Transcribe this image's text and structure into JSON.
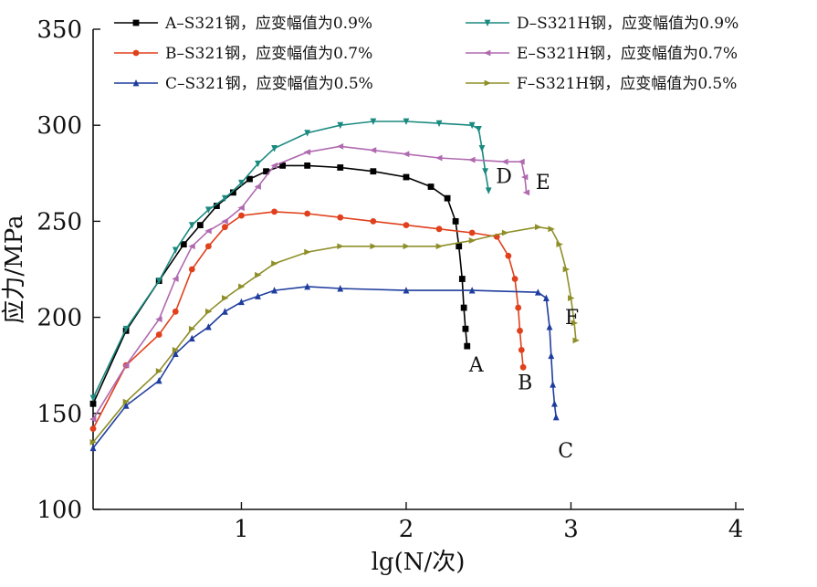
{
  "chart_data": {
    "type": "line",
    "xlabel": "lg(N/次)",
    "ylabel": "应力/MPa",
    "xlim": [
      0.1,
      4.05
    ],
    "ylim": [
      100,
      350
    ],
    "xticks": [
      "1",
      "2",
      "3",
      "4"
    ],
    "yticks": [
      "100",
      "150",
      "200",
      "250",
      "300",
      "350"
    ],
    "grid": false,
    "legend_position": "top",
    "series": [
      {
        "name": "A–S321钢，应变幅值为0.9%",
        "end_label": "A",
        "color": "#000000",
        "marker": "square",
        "x": [
          0.1,
          0.3,
          0.5,
          0.65,
          0.75,
          0.85,
          0.95,
          1.05,
          1.15,
          1.25,
          1.4,
          1.6,
          1.8,
          2.0,
          2.15,
          2.25,
          2.3,
          2.32,
          2.34,
          2.35,
          2.36,
          2.37
        ],
        "y": [
          155,
          193,
          219,
          238,
          248,
          258,
          265,
          272,
          276,
          279,
          279,
          278,
          276,
          273,
          268,
          262,
          250,
          237,
          220,
          205,
          194,
          185
        ]
      },
      {
        "name": "B–S321钢，应变幅值为0.7%",
        "end_label": "B",
        "color": "#e0401c",
        "marker": "circle",
        "x": [
          0.1,
          0.3,
          0.5,
          0.6,
          0.7,
          0.8,
          0.9,
          1.0,
          1.2,
          1.4,
          1.6,
          1.8,
          2.0,
          2.2,
          2.4,
          2.55,
          2.62,
          2.66,
          2.68,
          2.69,
          2.7,
          2.71
        ],
        "y": [
          142,
          175,
          191,
          203,
          225,
          237,
          247,
          253,
          255,
          254,
          252,
          250,
          248,
          246,
          244,
          242,
          232,
          220,
          205,
          193,
          183,
          174
        ]
      },
      {
        "name": "C–S321钢，应变幅值为0.5%",
        "end_label": "C",
        "color": "#1f3d9e",
        "marker": "triangle-up",
        "x": [
          0.1,
          0.3,
          0.5,
          0.6,
          0.7,
          0.8,
          0.9,
          1.0,
          1.1,
          1.2,
          1.4,
          1.6,
          2.0,
          2.4,
          2.8,
          2.85,
          2.87,
          2.88,
          2.89,
          2.9,
          2.91
        ],
        "y": [
          132,
          154,
          167,
          181,
          189,
          195,
          203,
          208,
          211,
          214,
          216,
          215,
          214,
          214,
          213,
          210,
          195,
          180,
          165,
          155,
          148
        ]
      },
      {
        "name": "D–S321H钢，应变幅值为0.9%",
        "end_label": "D",
        "color": "#1a8a80",
        "marker": "triangle-down",
        "x": [
          0.1,
          0.3,
          0.5,
          0.6,
          0.7,
          0.8,
          0.9,
          1.0,
          1.1,
          1.2,
          1.4,
          1.6,
          1.8,
          2.0,
          2.2,
          2.4,
          2.44,
          2.46,
          2.48,
          2.5
        ],
        "y": [
          158,
          194,
          219,
          235,
          248,
          256,
          262,
          270,
          280,
          288,
          296,
          300,
          302,
          302,
          301,
          300,
          298,
          288,
          276,
          266
        ]
      },
      {
        "name": "E–S321H钢，应变幅值为0.7%",
        "end_label": "E",
        "color": "#b06ab0",
        "marker": "triangle-left",
        "x": [
          0.1,
          0.3,
          0.5,
          0.6,
          0.7,
          0.8,
          0.9,
          1.0,
          1.1,
          1.2,
          1.4,
          1.6,
          1.8,
          2.0,
          2.2,
          2.4,
          2.6,
          2.7,
          2.72,
          2.73
        ],
        "y": [
          147,
          175,
          199,
          220,
          237,
          245,
          250,
          257,
          268,
          279,
          286,
          289,
          287,
          285,
          283,
          282,
          281,
          281,
          273,
          265
        ]
      },
      {
        "name": "F–S321H钢，应变幅值为0.5%",
        "end_label": "F",
        "color": "#8f8f2a",
        "marker": "triangle-right",
        "x": [
          0.1,
          0.3,
          0.5,
          0.6,
          0.7,
          0.8,
          0.9,
          1.0,
          1.1,
          1.2,
          1.4,
          1.6,
          1.8,
          2.0,
          2.2,
          2.4,
          2.6,
          2.8,
          2.88,
          2.93,
          2.97,
          3.0,
          3.02,
          3.03
        ],
        "y": [
          135,
          156,
          172,
          183,
          194,
          203,
          210,
          216,
          222,
          228,
          234,
          237,
          237,
          237,
          237,
          240,
          244,
          247,
          246,
          238,
          225,
          210,
          197,
          188
        ]
      }
    ]
  }
}
